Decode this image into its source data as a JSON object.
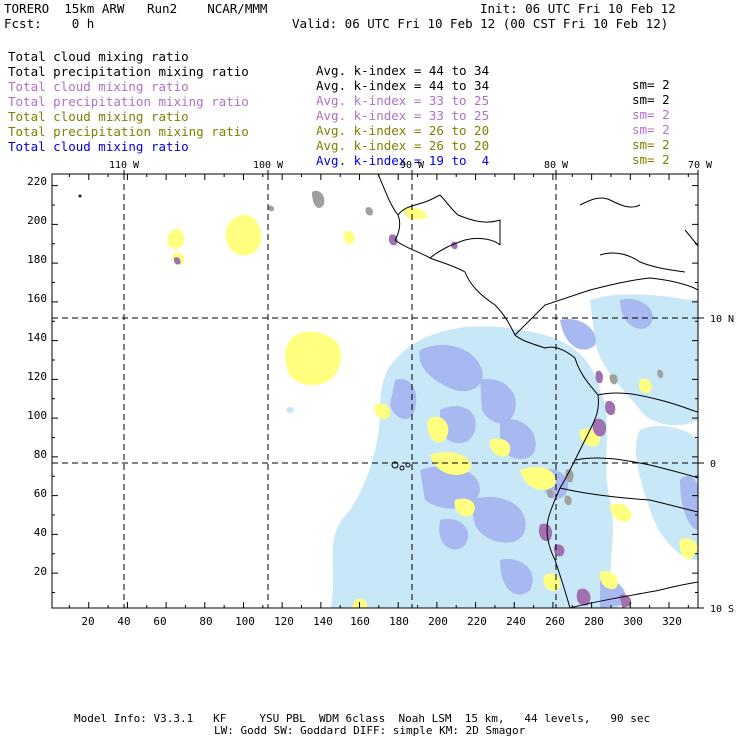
{
  "header": {
    "model": "TORERO  15km ARW   Run2    NCAR/MMM",
    "init": "Init: 06 UTC Fri 10 Feb 12",
    "fcst": "Fcst:    0 h",
    "valid": "Valid: 06 UTC Fri 10 Feb 12 (00 CST Fri 10 Feb 12)"
  },
  "legend": [
    {
      "field": "Total cloud mixing ratio",
      "index": "Avg. k-index = 44 to 34",
      "sm": "sm= 2",
      "color": "#000000"
    },
    {
      "field": "Total precipitation mixing ratio",
      "index": "Avg. k-index = 44 to 34",
      "sm": "sm= 2",
      "color": "#000000"
    },
    {
      "field": "Total cloud mixing ratio",
      "index": "Avg. k-index = 33 to 25",
      "sm": "sm= 2",
      "color": "#b070c8"
    },
    {
      "field": "Total precipitation mixing ratio",
      "index": "Avg. k-index = 33 to 25",
      "sm": "sm= 2",
      "color": "#b070c8"
    },
    {
      "field": "Total cloud mixing ratio",
      "index": "Avg. k-index = 26 to 20",
      "sm": "sm= 2",
      "color": "#808000"
    },
    {
      "field": "Total precipitation mixing ratio",
      "index": "Avg. k-index = 26 to 20",
      "sm": "sm= 2",
      "color": "#808000"
    },
    {
      "field": "Total cloud mixing ratio",
      "index": "Avg. k-index = 19 to  4",
      "sm": "",
      "color": "#0000e0"
    }
  ],
  "longitude_labels": [
    "110 W",
    "100 W",
    "90 W",
    "80 W",
    "70 W"
  ],
  "latitude_labels": [
    "10 N",
    "0",
    "10 S"
  ],
  "y_ticks": [
    "220",
    "200",
    "180",
    "160",
    "140",
    "120",
    "100",
    "80",
    "60",
    "40",
    "20"
  ],
  "x_ticks": [
    "20",
    "40",
    "60",
    "80",
    "100",
    "120",
    "140",
    "160",
    "180",
    "200",
    "220",
    "240",
    "260",
    "280",
    "300",
    "320"
  ],
  "colors": {
    "cloud_light": "#c8e8f8",
    "cloud_blue": "#a8b8f0",
    "yellow": "#ffff80",
    "purple": "#a070b0",
    "gray": "#a0a0a0"
  },
  "footer": {
    "line1": "Model Info: V3.3.1   KF     YSU PBL  WDM 6class  Noah LSM  15 km,   44 levels,   90 sec",
    "line2": "LW: Godd SW: Goddard DIFF: simple KM: 2D Smagor"
  }
}
